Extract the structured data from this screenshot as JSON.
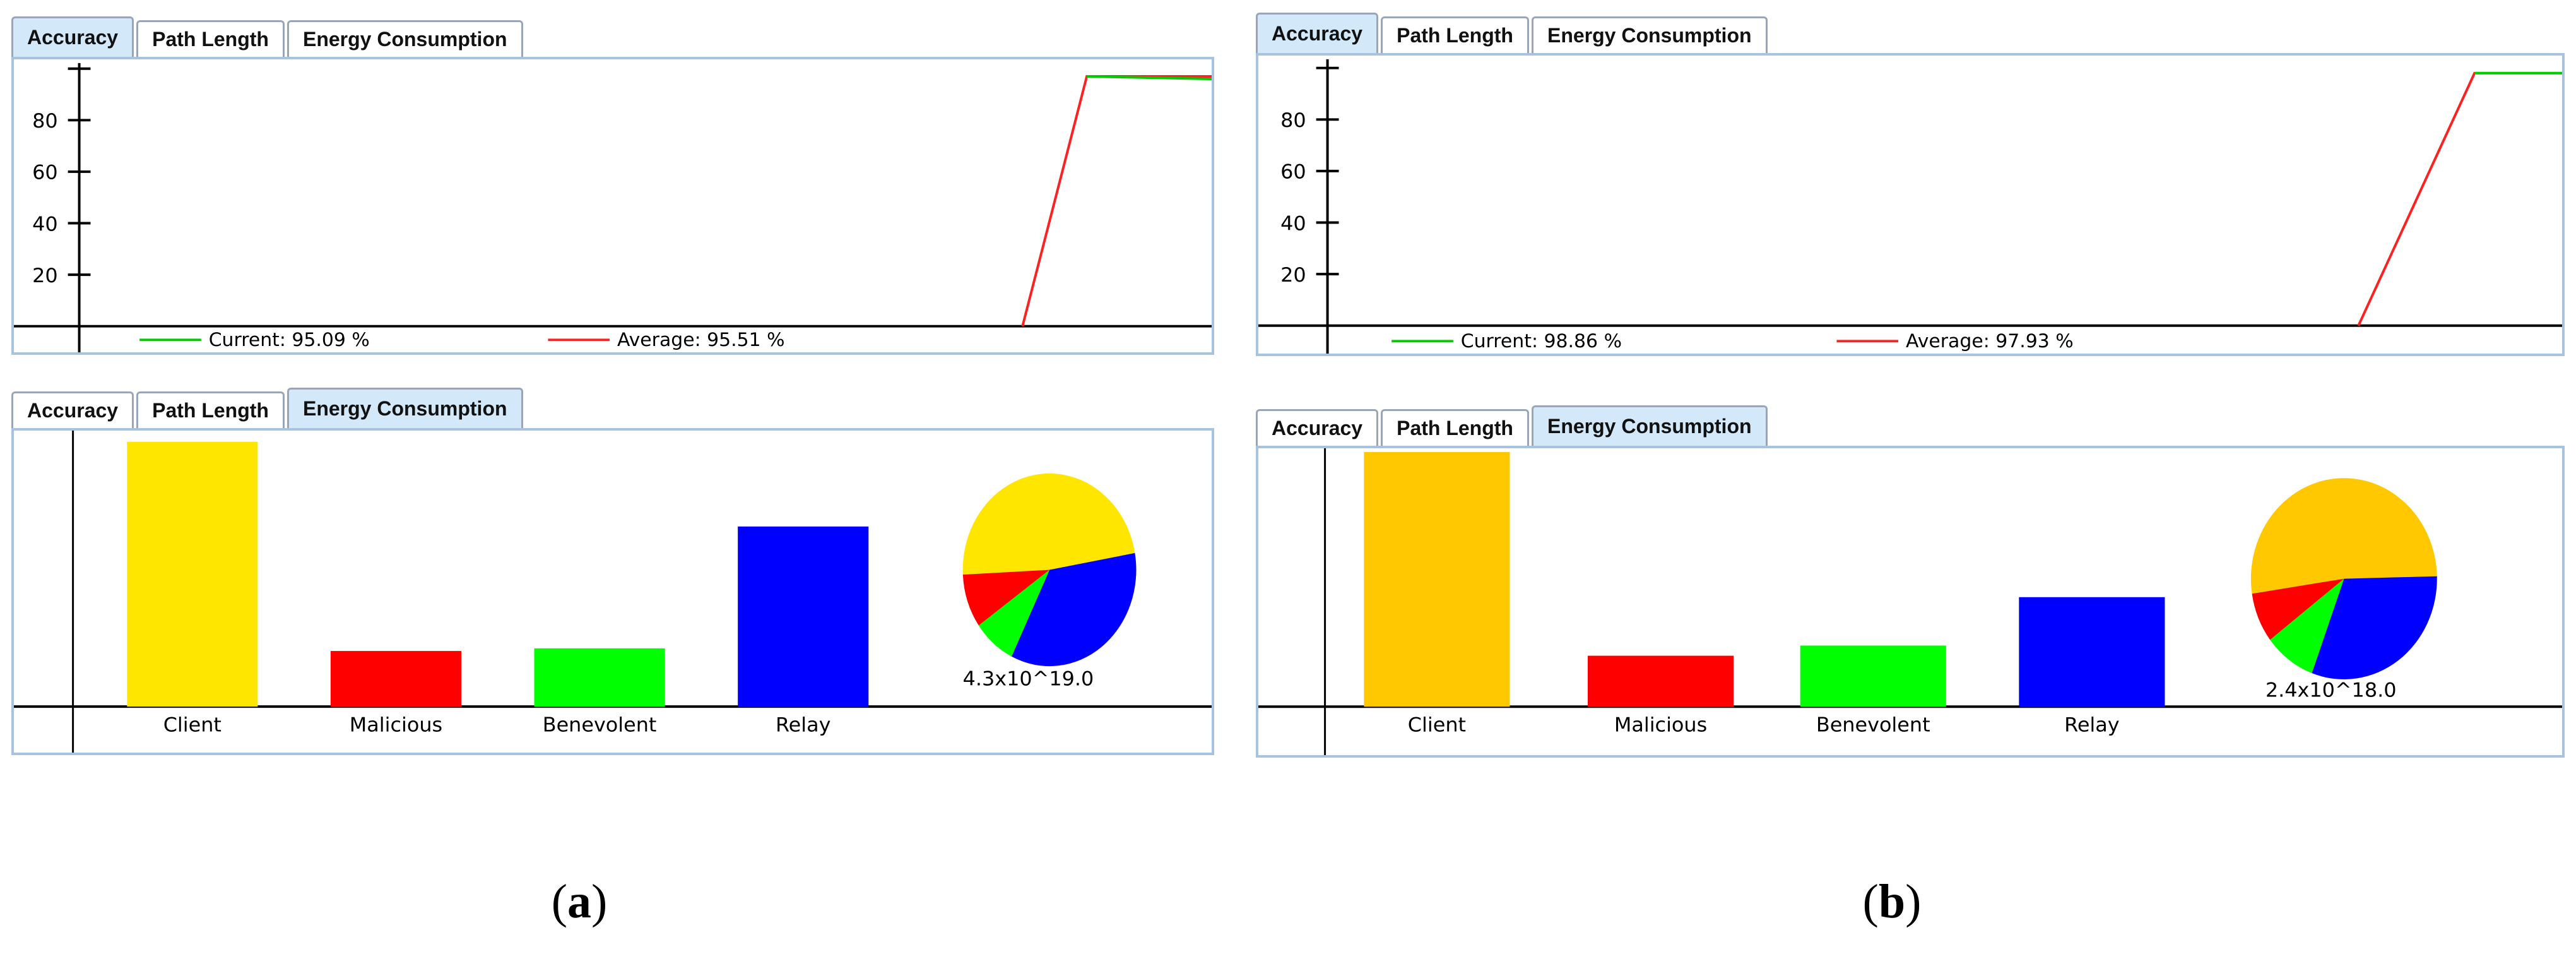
{
  "tabs": [
    "Accuracy",
    "Path Length",
    "Energy Consumption"
  ],
  "panels": {
    "a": {
      "caption_letter": "a",
      "accuracy": {
        "yticks": [
          "80",
          "60",
          "40",
          "20"
        ],
        "legend_current": "Current: 95.09 %",
        "legend_average": "Average: 95.51 %",
        "colors": {
          "current": "#00cc00",
          "average": "#ff2020"
        }
      },
      "energy": {
        "categories": [
          "Client",
          "Malicious",
          "Benevolent",
          "Relay"
        ],
        "pie_label": "4.3x10^19.0",
        "colors": [
          "#ffe600",
          "#ff0000",
          "#00ff00",
          "#0000ff"
        ]
      }
    },
    "b": {
      "caption_letter": "b",
      "accuracy": {
        "yticks": [
          "80",
          "60",
          "40",
          "20"
        ],
        "legend_current": "Current: 98.86 %",
        "legend_average": "Average: 97.93 %",
        "colors": {
          "current": "#00cc00",
          "average": "#ff2020"
        }
      },
      "energy": {
        "categories": [
          "Client",
          "Malicious",
          "Benevolent",
          "Relay"
        ],
        "pie_label": "2.4x10^18.0",
        "colors": [
          "#ffc800",
          "#ff0000",
          "#00ff00",
          "#0000ff"
        ]
      }
    }
  },
  "chart_data": [
    {
      "type": "line",
      "panel": "a",
      "series": [
        {
          "name": "Current: 95.09 %",
          "x": [
            0,
            0.34,
            1
          ],
          "y": [
            0,
            97,
            96
          ]
        },
        {
          "name": "Average: 95.51 %",
          "x": [
            0,
            0.34,
            1
          ],
          "y": [
            0,
            97,
            97
          ]
        }
      ],
      "ytick_labels": [
        "80",
        "60",
        "40",
        "20"
      ],
      "ylim": [
        0,
        100
      ],
      "grid": false
    },
    {
      "type": "bar",
      "panel": "a",
      "categories": [
        "Client",
        "Malicious",
        "Benevolent",
        "Relay"
      ],
      "values": [
        100,
        21,
        22,
        68
      ],
      "ylim": [
        0,
        100
      ]
    },
    {
      "type": "pie",
      "panel": "a",
      "categories": [
        "Client",
        "Malicious",
        "Benevolent",
        "Relay"
      ],
      "values": [
        48,
        9,
        8,
        35
      ],
      "label": "4.3x10^19.0"
    },
    {
      "type": "line",
      "panel": "b",
      "series": [
        {
          "name": "Current: 98.86 %",
          "x": [
            0,
            0.57,
            1
          ],
          "y": [
            0,
            98,
            98
          ]
        },
        {
          "name": "Average: 97.93 %",
          "x": [
            0,
            0.57,
            1
          ],
          "y": [
            0,
            98,
            98
          ]
        }
      ],
      "ytick_labels": [
        "80",
        "60",
        "40",
        "20"
      ],
      "ylim": [
        0,
        100
      ],
      "grid": false
    },
    {
      "type": "bar",
      "panel": "b",
      "categories": [
        "Client",
        "Malicious",
        "Benevolent",
        "Relay"
      ],
      "values": [
        100,
        20,
        24,
        43
      ],
      "ylim": [
        0,
        100
      ]
    },
    {
      "type": "pie",
      "panel": "b",
      "categories": [
        "Client",
        "Malicious",
        "Benevolent",
        "Relay"
      ],
      "values": [
        52,
        8,
        9,
        31
      ],
      "label": "2.4x10^18.0"
    }
  ]
}
